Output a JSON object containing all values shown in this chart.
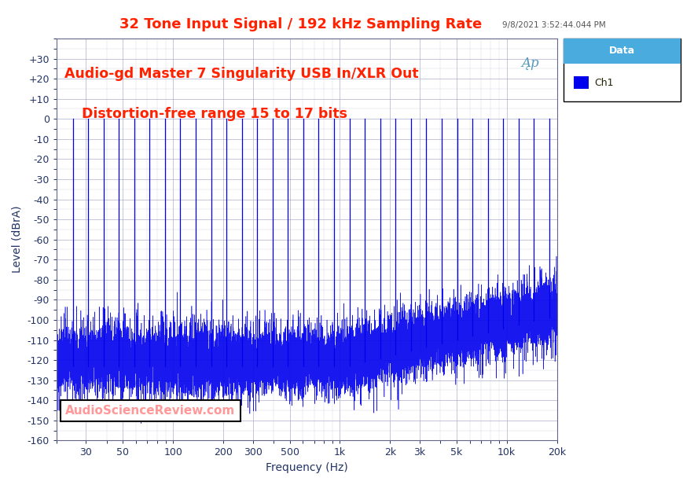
{
  "title": "32 Tone Input Signal / 192 kHz Sampling Rate",
  "title_color": "#FF2200",
  "title_fontsize": 13,
  "timestamp": "9/8/2021 3:52:44.044 PM",
  "annotation1": "Audio-gd Master 7 Singularity USB In/XLR Out",
  "annotation2": "Distortion-free range 15 to 17 bits",
  "annotation_color": "#FF2200",
  "annotation_fontsize": 12.5,
  "xlabel": "Frequency (Hz)",
  "ylabel": "Level (dBrA)",
  "xlim_log": [
    20,
    20000
  ],
  "ylim": [
    -160,
    40
  ],
  "yticks": [
    30,
    20,
    10,
    0,
    -10,
    -20,
    -30,
    -40,
    -50,
    -60,
    -70,
    -80,
    -90,
    -100,
    -110,
    -120,
    -130,
    -140,
    -150,
    -160
  ],
  "ytick_labels": [
    "+30",
    "+20",
    "+10",
    "0",
    "-10",
    "-20",
    "-30",
    "-40",
    "-50",
    "-60",
    "-70",
    "-80",
    "-90",
    "-100",
    "-110",
    "-120",
    "-130",
    "-140",
    "-150",
    "-160"
  ],
  "xtick_positions": [
    20,
    30,
    50,
    100,
    200,
    300,
    500,
    1000,
    2000,
    3000,
    5000,
    10000,
    20000
  ],
  "xtick_labels": [
    "",
    "30",
    "50",
    "100",
    "200",
    "300",
    "500",
    "1k",
    "2k",
    "3k",
    "5k",
    "10k",
    "20k"
  ],
  "grid_color": "#AAAACC",
  "background_color": "#FFFFFF",
  "plot_bg_color": "#FFFFFF",
  "line_color": "#0000EE",
  "legend_header": "Data",
  "legend_label": "Ch1",
  "legend_header_bg": "#4AABDE",
  "legend_marker_color": "#0000EE",
  "asr_text": "AudioScienceReview.com",
  "asr_color": "#FF9999",
  "ap_logo_color": "#5599BB",
  "num_tones": 32,
  "noise_base": -120,
  "noise_spread": 8,
  "seed": 42
}
